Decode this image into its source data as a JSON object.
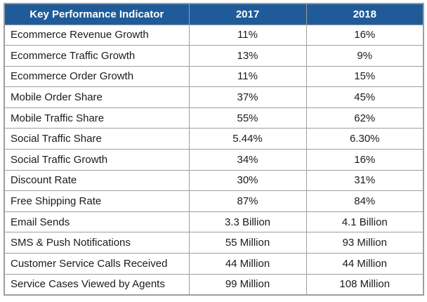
{
  "table": {
    "columns": [
      {
        "key": "label",
        "label": "Key Performance Indicator"
      },
      {
        "key": "y2017",
        "label": "2017"
      },
      {
        "key": "y2018",
        "label": "2018"
      }
    ],
    "rows": [
      {
        "label": "Ecommerce Revenue Growth",
        "y2017": "11%",
        "y2018": "16%"
      },
      {
        "label": "Ecommerce Traffic Growth",
        "y2017": "13%",
        "y2018": "9%"
      },
      {
        "label": "Ecommerce Order Growth",
        "y2017": "11%",
        "y2018": "15%"
      },
      {
        "label": "Mobile Order Share",
        "y2017": "37%",
        "y2018": "45%"
      },
      {
        "label": "Mobile Traffic Share",
        "y2017": "55%",
        "y2018": "62%"
      },
      {
        "label": "Social Traffic Share",
        "y2017": "5.44%",
        "y2018": "6.30%"
      },
      {
        "label": "Social Traffic Growth",
        "y2017": "34%",
        "y2018": "16%"
      },
      {
        "label": "Discount Rate",
        "y2017": "30%",
        "y2018": "31%"
      },
      {
        "label": "Free Shipping Rate",
        "y2017": "87%",
        "y2018": "84%"
      },
      {
        "label": "Email Sends",
        "y2017": "3.3 Billion",
        "y2018": "4.1 Billion"
      },
      {
        "label": "SMS & Push Notifications",
        "y2017": "55 Million",
        "y2018": "93 Million"
      },
      {
        "label": "Customer Service Calls Received",
        "y2017": "44 Million",
        "y2018": "44 Million"
      },
      {
        "label": "Service Cases Viewed by Agents",
        "y2017": "99 Million",
        "y2018": "108 Million"
      }
    ]
  },
  "colors": {
    "header_bg": "#1F5B99",
    "header_text": "#FFFFFF",
    "border": "#9E9E9E",
    "body_text": "#1B1B1B",
    "row_bg": "#FFFFFF"
  }
}
